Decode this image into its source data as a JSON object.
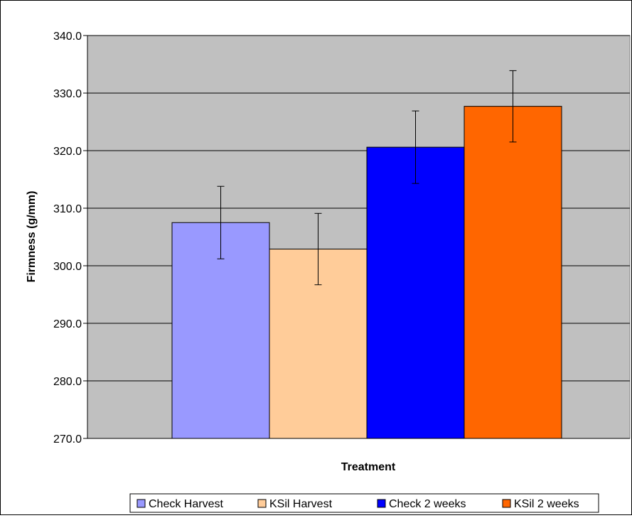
{
  "chart_data": {
    "type": "bar",
    "xlabel": "Treatment",
    "ylabel": "Firmness (g/mm)",
    "ylim": [
      270,
      340
    ],
    "yticks": [
      "270.0",
      "280.0",
      "290.0",
      "300.0",
      "310.0",
      "320.0",
      "330.0",
      "340.0"
    ],
    "grid": true,
    "legend_position": "bottom",
    "series": [
      {
        "name": "Check Harvest",
        "value": 307.5,
        "error": 6.3,
        "color": "#9999FF"
      },
      {
        "name": "KSil Harvest",
        "value": 302.9,
        "error": 6.2,
        "color": "#FFCC99"
      },
      {
        "name": "Check 2 weeks",
        "value": 320.6,
        "error": 6.3,
        "color": "#0000FF"
      },
      {
        "name": "KSil 2 weeks",
        "value": 327.7,
        "error": 6.2,
        "color": "#FF6600"
      }
    ],
    "plot_background": "#C0C0C0"
  }
}
